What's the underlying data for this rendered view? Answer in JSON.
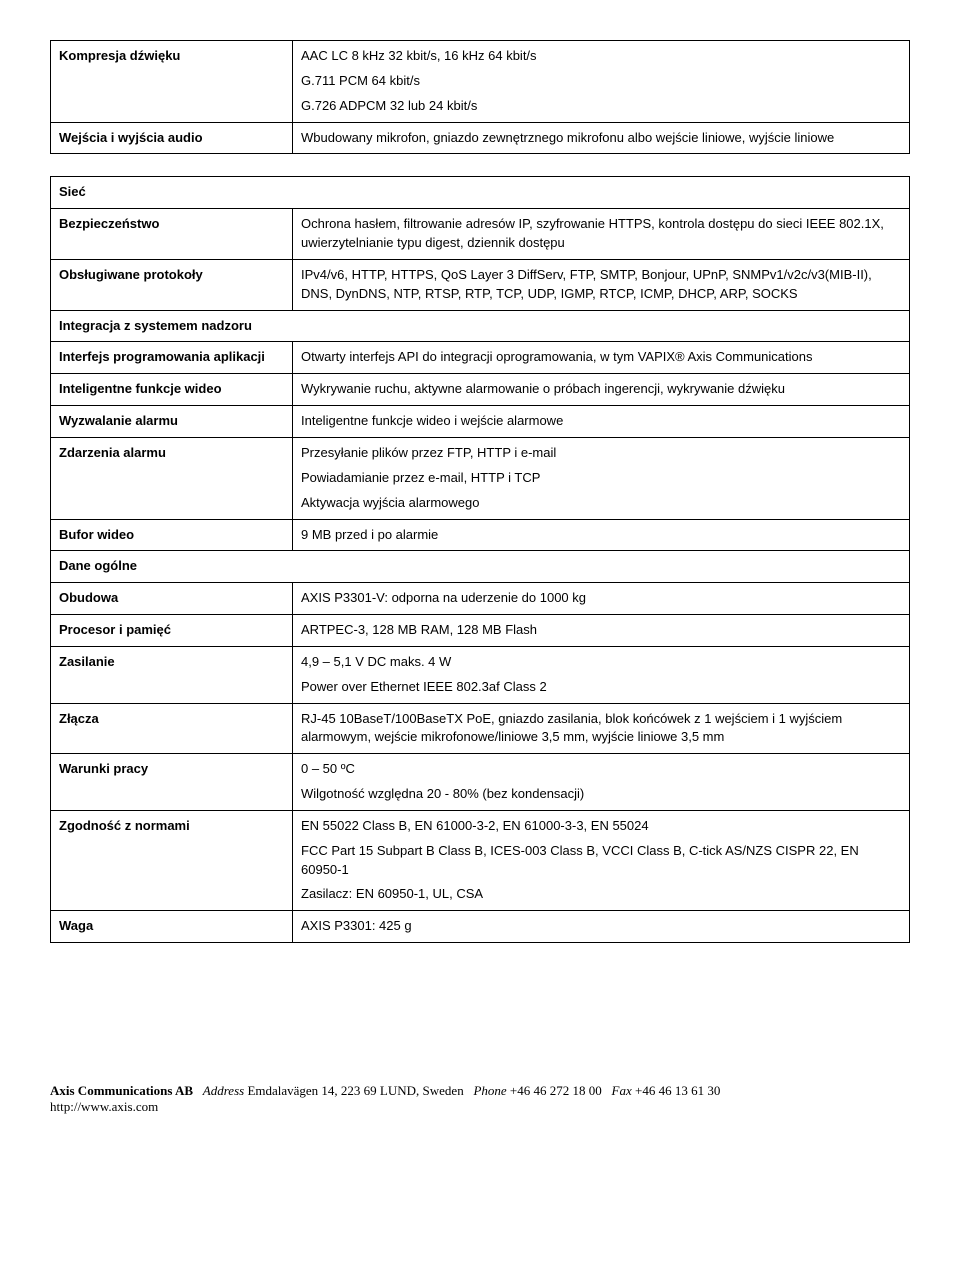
{
  "table1": {
    "r0_label": "Kompresja dźwięku",
    "r0_v0": "AAC LC 8 kHz 32 kbit/s, 16 kHz 64 kbit/s",
    "r0_v1": "G.711 PCM 64 kbit/s",
    "r0_v2": "G.726 ADPCM 32 lub 24 kbit/s",
    "r1_label": "Wejścia i wyjścia audio",
    "r1_v0": "Wbudowany mikrofon, gniazdo zewnętrznego mikrofonu albo wejście liniowe, wyjście liniowe"
  },
  "table2": {
    "sec0": "Sieć",
    "r0_label": "Bezpieczeństwo",
    "r0_v0": "Ochrona hasłem, filtrowanie adresów IP, szyfrowanie HTTPS, kontrola dostępu do sieci IEEE 802.1X, uwierzytelnianie typu digest, dziennik dostępu",
    "r1_label": "Obsługiwane protokoły",
    "r1_v0": "IPv4/v6, HTTP, HTTPS, QoS Layer 3 DiffServ, FTP, SMTP, Bonjour, UPnP, SNMPv1/v2c/v3(MIB-II), DNS, DynDNS, NTP, RTSP, RTP, TCP, UDP, IGMP, RTCP, ICMP, DHCP, ARP, SOCKS",
    "sec1": "Integracja z systemem nadzoru",
    "r2_label": "Interfejs programowania aplikacji",
    "r2_v0": "Otwarty interfejs API do integracji oprogramowania, w tym VAPIX® Axis Communications",
    "r3_label": "Inteligentne funkcje wideo",
    "r3_v0": "Wykrywanie ruchu, aktywne alarmowanie o próbach ingerencji, wykrywanie dźwięku",
    "r4_label": "Wyzwalanie alarmu",
    "r4_v0": "Inteligentne funkcje wideo i wejście alarmowe",
    "r5_label": "Zdarzenia alarmu",
    "r5_v0": "Przesyłanie plików przez FTP, HTTP i e-mail",
    "r5_v1": "Powiadamianie przez e-mail, HTTP i TCP",
    "r5_v2": "Aktywacja wyjścia alarmowego",
    "r6_label": "Bufor wideo",
    "r6_v0": "9 MB przed i po alarmie",
    "sec2": "Dane ogólne",
    "r7_label": "Obudowa",
    "r7_v0": "AXIS P3301-V: odporna na uderzenie do 1000 kg",
    "r8_label": "Procesor i pamięć",
    "r8_v0": "ARTPEC-3, 128 MB RAM, 128 MB Flash",
    "r9_label": "Zasilanie",
    "r9_v0": "4,9 – 5,1 V DC maks. 4 W",
    "r9_v1": "Power over Ethernet IEEE 802.3af Class 2",
    "r10_label": "Złącza",
    "r10_v0": "RJ-45 10BaseT/100BaseTX PoE, gniazdo zasilania, blok końcówek z 1 wejściem i 1 wyjściem alarmowym, wejście mikrofonowe/liniowe 3,5 mm, wyjście liniowe 3,5 mm",
    "r11_label": "Warunki pracy",
    "r11_v0": "0 – 50 ºC",
    "r11_v1": "Wilgotność względna 20 - 80% (bez kondensacji)",
    "r12_label": "Zgodność z normami",
    "r12_v0": "EN 55022 Class B, EN 61000-3-2, EN 61000-3-3, EN 55024",
    "r12_v1": "FCC Part 15 Subpart B Class B, ICES-003 Class B, VCCI Class B, C-tick AS/NZS CISPR 22, EN 60950-1",
    "r12_v2": "Zasilacz: EN 60950-1, UL, CSA",
    "r13_label": "Waga",
    "r13_v0": "AXIS P3301: 425 g"
  },
  "footer": {
    "company": "Axis Communications AB",
    "address_label": "Address",
    "address": "Emdalavägen 14, 223 69 LUND, Sweden",
    "phone_label": "Phone",
    "phone": "+46 46 272 18 00",
    "fax_label": "Fax",
    "fax": "+46 46 13 61 30",
    "url": "http://www.axis.com"
  }
}
